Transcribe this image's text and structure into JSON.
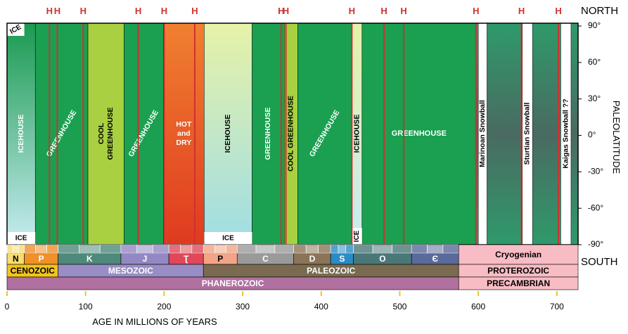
{
  "chart_data": {
    "type": "timeline",
    "xlabel": "AGE IN MILLIONS OF YEARS",
    "ylabel": "PALEOLATITUDE",
    "north_label": "NORTH",
    "south_label": "SOUTH",
    "xlim": [
      0,
      727
    ],
    "xticks": [
      0,
      100,
      200,
      300,
      400,
      500,
      600,
      700
    ],
    "ylim": [
      -90,
      90
    ],
    "yticks": [
      {
        "value": 90,
        "label": "90°"
      },
      {
        "value": 60,
        "label": "60°"
      },
      {
        "value": 30,
        "label": "30°"
      },
      {
        "value": 0,
        "label": "0°"
      },
      {
        "value": -30,
        "label": "-30°"
      },
      {
        "value": -60,
        "label": "-60°"
      },
      {
        "value": -90,
        "label": "-90°"
      }
    ],
    "bands": [
      {
        "label": [
          "ICEHOUSE"
        ],
        "start": 0,
        "end": 36,
        "color": "#1a9a50",
        "color2": "#c8ecf2",
        "label_color": "#ffffff"
      },
      {
        "label": [
          "GREENHOUSE"
        ],
        "start": 36,
        "end": 103,
        "color": "#1aa050",
        "label_color": "#ffffff"
      },
      {
        "label": [
          "COOL",
          "GREENHOUSE"
        ],
        "start": 103,
        "end": 149,
        "color": "#a8d040",
        "label_color": "#000000"
      },
      {
        "label": [
          "GREENHOUSE"
        ],
        "start": 149,
        "end": 199,
        "color": "#1aa050",
        "label_color": "#ffffff"
      },
      {
        "label": [
          "HOT",
          "and",
          "DRY"
        ],
        "start": 199,
        "end": 251,
        "color": "#f08030",
        "color2": "#e03a20",
        "label_color": "#ffffff"
      },
      {
        "label": [
          "ICEHOUSE"
        ],
        "start": 251,
        "end": 312,
        "color": "#e6f2a8",
        "color2": "#9fdde6",
        "label_color": "#000000"
      },
      {
        "label": [
          "GREENHOUSE"
        ],
        "start": 312,
        "end": 353,
        "color": "#1aa050",
        "label_color": "#ffffff"
      },
      {
        "label": [
          "COOL GREENHOUSE"
        ],
        "start": 353,
        "end": 370,
        "color": "#a8d040",
        "label_color": "#000000"
      },
      {
        "label": [
          "GREENHOUSE"
        ],
        "start": 370,
        "end": 439,
        "color": "#1aa050",
        "label_color": "#ffffff"
      },
      {
        "label": [
          "ICEHOUSE"
        ],
        "start": 439,
        "end": 452,
        "color": "#e6f2a8",
        "color2": "#c8ecf2",
        "label_color": "#000000"
      },
      {
        "label": [
          "GREENHOUSE"
        ],
        "start": 452,
        "end": 597,
        "color": "#1aa050",
        "label_color": "#ffffff"
      },
      {
        "label": [
          "Marinoan Snowball"
        ],
        "start": 600,
        "end": 611,
        "color": "#ffffff",
        "label_color": "#000000"
      },
      {
        "label": [
          "Sturtian Snowball"
        ],
        "start": 656,
        "end": 669,
        "color": "#ffffff",
        "label_color": "#000000"
      },
      {
        "label": [
          "Kaigas Snowball ??"
        ],
        "start": 705,
        "end": 718,
        "color": "#ffffff",
        "label_color": "#000000"
      }
    ],
    "ice_caps": [
      {
        "label": "ICE",
        "start": 0,
        "end": 22,
        "pole": "north"
      },
      {
        "label": "ICE",
        "start": 0,
        "end": 36,
        "pole": "south"
      },
      {
        "label": "ICE",
        "start": 251,
        "end": 312,
        "pole": "south"
      },
      {
        "label": "ICE",
        "start": 439,
        "end": 452,
        "pole": "south"
      }
    ],
    "hyperthermals": {
      "label": "H",
      "color": "#d03030",
      "ages": [
        54,
        64,
        97,
        167,
        200,
        239,
        349,
        355,
        439,
        480,
        505,
        597,
        655,
        702
      ]
    },
    "periods": [
      {
        "label": "N",
        "start": 0,
        "end": 22,
        "color": "#f7dc6f"
      },
      {
        "label": "P",
        "start": 22,
        "end": 65,
        "color": "#f0902a"
      },
      {
        "label": "K",
        "start": 65,
        "end": 145,
        "color": "#4e8a7c"
      },
      {
        "label": "J",
        "start": 145,
        "end": 206,
        "color": "#9488c4"
      },
      {
        "label": "Ʈ",
        "start": 206,
        "end": 250,
        "color": "#e04858"
      },
      {
        "label": "P",
        "start": 250,
        "end": 293,
        "color": "#f2a486"
      },
      {
        "label": "C",
        "start": 293,
        "end": 365,
        "color": "#9a9a9a"
      },
      {
        "label": "D",
        "start": 365,
        "end": 412,
        "color": "#8c7458"
      },
      {
        "label": "S",
        "start": 412,
        "end": 441,
        "color": "#2a8cc4"
      },
      {
        "label": "O",
        "start": 441,
        "end": 515,
        "color": "#4a7878"
      },
      {
        "label": "Є",
        "start": 515,
        "end": 575,
        "color": "#5a6a9c"
      },
      {
        "label": "Cryogenian",
        "start": 575,
        "end": 727,
        "color": "#f8bcc4"
      }
    ],
    "eras": [
      {
        "label": "CENOZOIC",
        "start": 0,
        "end": 65,
        "color": "#f2c41e"
      },
      {
        "label": "MESOZOIC",
        "start": 65,
        "end": 250,
        "color": "#9a8cc4"
      },
      {
        "label": "PALEOZOIC",
        "start": 250,
        "end": 575,
        "color": "#7a6a50"
      },
      {
        "label": "PROTEROZOIC",
        "start": 575,
        "end": 727,
        "color": "#f8bcc4"
      }
    ],
    "eons": [
      {
        "label": "PHANEROZOIC",
        "start": 0,
        "end": 575,
        "color": "#b070a0"
      },
      {
        "label": "PRECAMBRIAN",
        "start": 575,
        "end": 727,
        "color": "#f8bcc4"
      }
    ]
  }
}
